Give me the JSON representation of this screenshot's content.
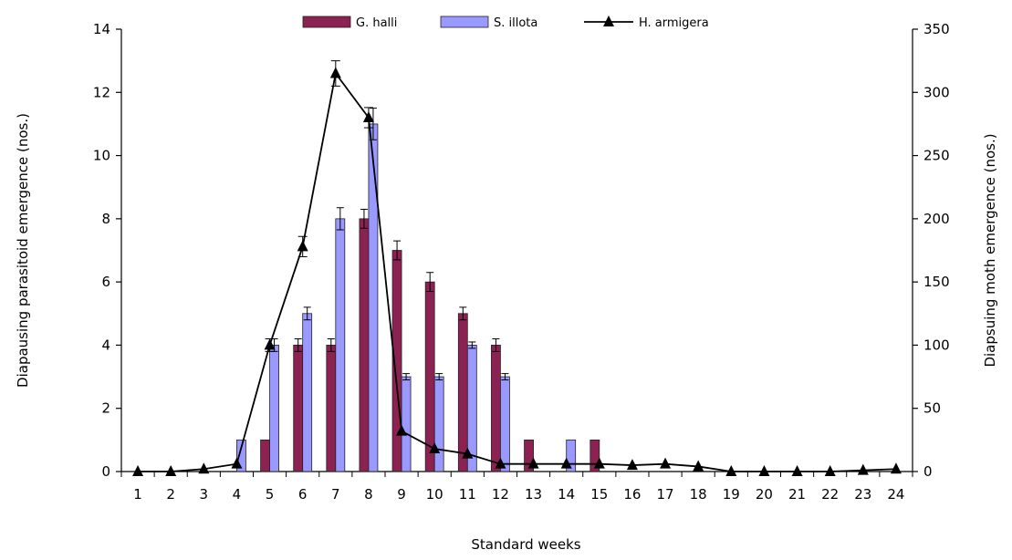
{
  "chart_data": {
    "type": "bar",
    "xlabel": "Standard weeks",
    "ylabel_left": "Diapausing parasitoid  emergence (nos.)",
    "ylabel_right": "Diapsuing moth emergence (nos.)",
    "categories": [
      "1",
      "2",
      "3",
      "4",
      "5",
      "6",
      "7",
      "8",
      "9",
      "10",
      "11",
      "12",
      "13",
      "14",
      "15",
      "16",
      "17",
      "18",
      "19",
      "20",
      "21",
      "22",
      "23",
      "24"
    ],
    "ylim_left": [
      0,
      14
    ],
    "yticks_left": [
      "0",
      "2",
      "4",
      "6",
      "8",
      "10",
      "12",
      "14"
    ],
    "ylim_right": [
      0,
      350
    ],
    "yticks_right": [
      "0",
      "50",
      "100",
      "150",
      "200",
      "250",
      "300",
      "350"
    ],
    "legend_position": "top",
    "grid": false,
    "series": [
      {
        "name": "G. halli",
        "kind": "bar",
        "axis": "left",
        "color": "#8B2252",
        "values": [
          0,
          0,
          0,
          0,
          1,
          4,
          4,
          8,
          7,
          6,
          5,
          4,
          1,
          0,
          1,
          0,
          0,
          0,
          0,
          0,
          0,
          0,
          0,
          0
        ],
        "errors": [
          0,
          0,
          0,
          0,
          0,
          0.2,
          0.2,
          0.3,
          0.3,
          0.3,
          0.2,
          0.2,
          0,
          0,
          0,
          0,
          0,
          0,
          0,
          0,
          0,
          0,
          0,
          0
        ]
      },
      {
        "name": "S. illota",
        "kind": "bar",
        "axis": "left",
        "color": "#9999FF",
        "values": [
          0,
          0,
          0,
          1,
          4,
          5,
          8,
          11,
          3,
          3,
          4,
          3,
          0,
          1,
          0,
          0,
          0,
          0,
          0,
          0,
          0,
          0,
          0,
          0
        ],
        "errors": [
          0,
          0,
          0,
          0,
          0.2,
          0.2,
          0.35,
          0.5,
          0.1,
          0.1,
          0.1,
          0.1,
          0,
          0,
          0,
          0,
          0,
          0,
          0,
          0,
          0,
          0,
          0,
          0
        ]
      },
      {
        "name": "H. armigera",
        "kind": "line",
        "axis": "right",
        "color": "#000000",
        "marker": "triangle",
        "values": [
          0,
          0,
          2,
          6,
          100,
          178,
          315,
          280,
          32,
          18,
          14,
          6,
          6,
          6,
          6,
          5,
          6,
          4,
          0,
          0,
          0,
          0,
          1,
          2
        ],
        "errors": [
          0,
          0,
          0,
          0,
          5,
          8,
          10,
          8,
          0,
          0,
          0,
          0,
          0,
          0,
          0,
          0,
          0,
          0,
          0,
          0,
          0,
          0,
          0,
          0
        ]
      }
    ]
  }
}
